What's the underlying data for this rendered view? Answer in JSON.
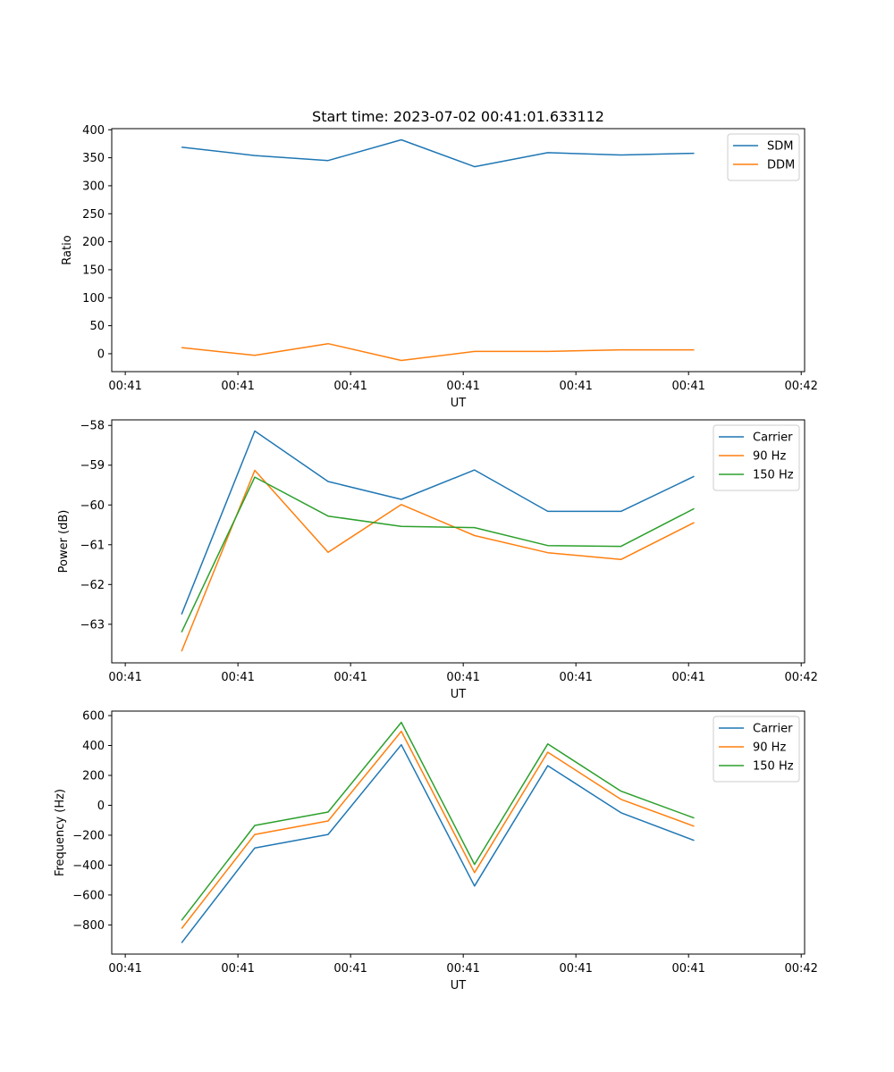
{
  "chart_data": [
    {
      "type": "line",
      "title": "Start time: 2023-07-02 00:41:01.633112",
      "xlabel": "UT",
      "ylabel": "Ratio",
      "x": [
        0.5,
        1.15,
        1.8,
        2.45,
        3.1,
        3.75,
        4.4,
        5.05
      ],
      "xlim": [
        -0.12,
        6.03
      ],
      "xticks": [
        0,
        1,
        2,
        3,
        4,
        5,
        6
      ],
      "xticklabels": [
        "00:41",
        "00:41",
        "00:41",
        "00:41",
        "00:41",
        "00:41",
        "00:42"
      ],
      "ylim": [
        -32,
        402
      ],
      "yticks": [
        0,
        50,
        100,
        150,
        200,
        250,
        300,
        350,
        400
      ],
      "yticklabels": [
        "0",
        "50",
        "100",
        "150",
        "200",
        "250",
        "300",
        "350",
        "400"
      ],
      "grid": false,
      "legend_position": "top-right",
      "series": [
        {
          "name": "SDM",
          "color": "#1f77b4",
          "values": [
            369,
            354,
            345,
            382,
            334,
            359,
            355,
            358
          ]
        },
        {
          "name": "DDM",
          "color": "#ff7f0e",
          "values": [
            11,
            -3,
            18,
            -12,
            4,
            4,
            7,
            7
          ]
        }
      ]
    },
    {
      "type": "line",
      "title": "",
      "xlabel": "UT",
      "ylabel": "Power (dB)",
      "x": [
        0.5,
        1.15,
        1.8,
        2.45,
        3.1,
        3.75,
        4.4,
        5.05
      ],
      "xlim": [
        -0.12,
        6.03
      ],
      "xticks": [
        0,
        1,
        2,
        3,
        4,
        5,
        6
      ],
      "xticklabels": [
        "00:41",
        "00:41",
        "00:41",
        "00:41",
        "00:41",
        "00:41",
        "00:42"
      ],
      "ylim": [
        -63.97,
        -57.86
      ],
      "yticks": [
        -63,
        -62,
        -61,
        -60,
        -59,
        -58
      ],
      "yticklabels": [
        "−63",
        "−62",
        "−61",
        "−60",
        "−59",
        "−58"
      ],
      "grid": false,
      "legend_position": "top-right",
      "series": [
        {
          "name": "Carrier",
          "color": "#1f77b4",
          "values": [
            -62.75,
            -58.14,
            -59.41,
            -59.86,
            -59.12,
            -60.16,
            -60.16,
            -59.28
          ]
        },
        {
          "name": "90 Hz",
          "color": "#ff7f0e",
          "values": [
            -63.68,
            -59.13,
            -61.19,
            -59.99,
            -60.77,
            -61.2,
            -61.37,
            -60.44
          ]
        },
        {
          "name": "150 Hz",
          "color": "#2ca02c",
          "values": [
            -63.2,
            -59.3,
            -60.28,
            -60.54,
            -60.57,
            -61.02,
            -61.04,
            -60.09
          ]
        }
      ]
    },
    {
      "type": "line",
      "title": "",
      "xlabel": "UT",
      "ylabel": "Frequency (Hz)",
      "x": [
        0.5,
        1.15,
        1.8,
        2.45,
        3.1,
        3.75,
        4.4,
        5.05
      ],
      "xlim": [
        -0.12,
        6.03
      ],
      "xticks": [
        0,
        1,
        2,
        3,
        4,
        5,
        6
      ],
      "xticklabels": [
        "00:41",
        "00:41",
        "00:41",
        "00:41",
        "00:41",
        "00:41",
        "00:42"
      ],
      "ylim": [
        -995,
        630
      ],
      "yticks": [
        -800,
        -600,
        -400,
        -200,
        0,
        200,
        400,
        600
      ],
      "yticklabels": [
        "−800",
        "−600",
        "−400",
        "−200",
        "0",
        "200",
        "400",
        "600"
      ],
      "grid": false,
      "legend_position": "top-right",
      "series": [
        {
          "name": "Carrier",
          "color": "#1f77b4",
          "values": [
            -920,
            -285,
            -195,
            405,
            -540,
            265,
            -50,
            -235
          ]
        },
        {
          "name": "90 Hz",
          "color": "#ff7f0e",
          "values": [
            -825,
            -195,
            -105,
            495,
            -450,
            355,
            40,
            -140
          ]
        },
        {
          "name": "150 Hz",
          "color": "#2ca02c",
          "values": [
            -770,
            -135,
            -45,
            555,
            -395,
            410,
            95,
            -85
          ]
        }
      ]
    }
  ]
}
